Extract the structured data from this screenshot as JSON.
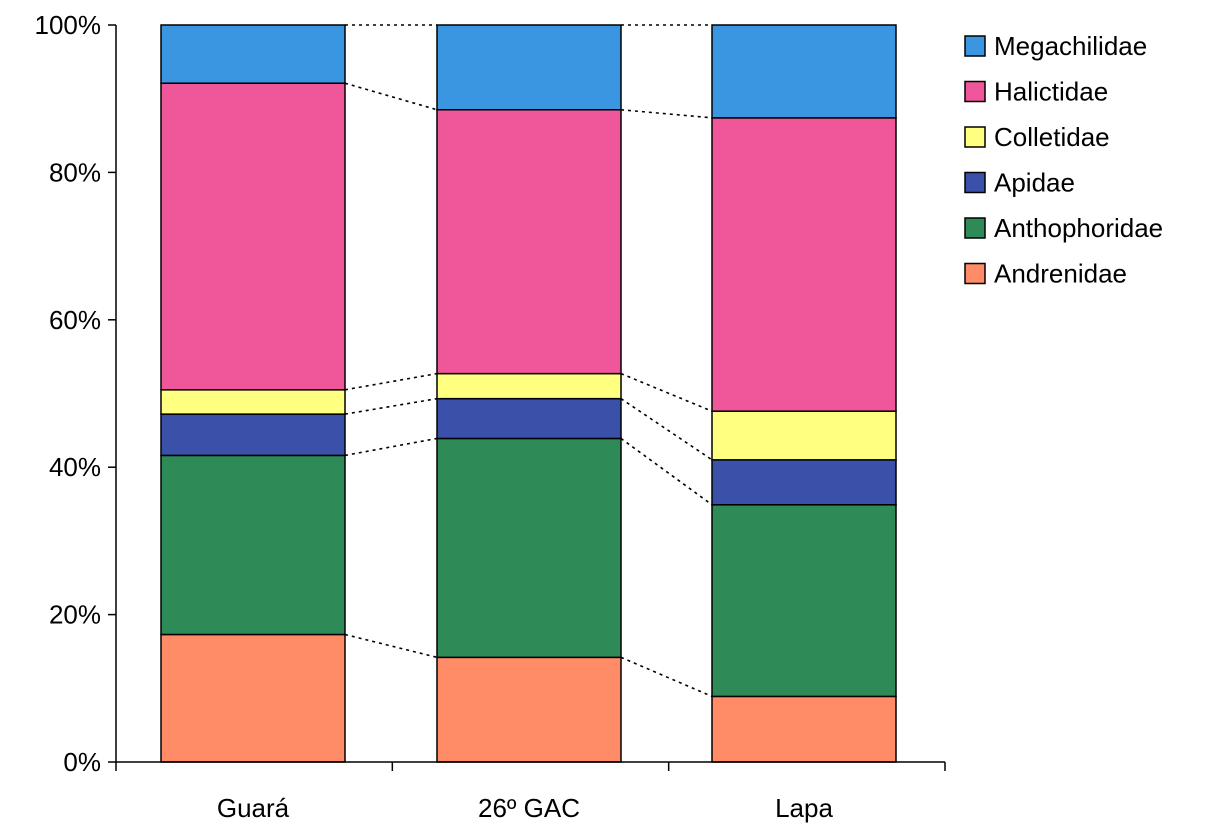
{
  "chart_data": {
    "type": "bar",
    "stacked": "percent",
    "categories": [
      "Guará",
      "26º GAC",
      "Lapa"
    ],
    "series": [
      {
        "name": "Andrenidae",
        "values": [
          17.3,
          14.2,
          8.9
        ],
        "color": "#ff8c66"
      },
      {
        "name": "Anthophoridae",
        "values": [
          24.3,
          29.7,
          26.0
        ],
        "color": "#2e8b57"
      },
      {
        "name": "Apidae",
        "values": [
          5.6,
          5.4,
          6.1
        ],
        "color": "#3b50a8"
      },
      {
        "name": "Colletidae",
        "values": [
          3.3,
          3.4,
          6.6
        ],
        "color": "#ffff80"
      },
      {
        "name": "Halictidae",
        "values": [
          41.6,
          35.8,
          39.8
        ],
        "color": "#f0569a"
      },
      {
        "name": "Megachilidae",
        "values": [
          7.9,
          11.5,
          12.6
        ],
        "color": "#3a96e0"
      }
    ],
    "legend_order": [
      "Megachilidae",
      "Halictidae",
      "Colletidae",
      "Apidae",
      "Anthophoridae",
      "Andrenidae"
    ],
    "yticks": [
      "0%",
      "20%",
      "40%",
      "60%",
      "80%",
      "100%"
    ],
    "ylim": [
      0,
      100
    ],
    "series_lines": "dotted",
    "legend": "top-right",
    "grid": false,
    "title": "",
    "xlabel": "",
    "ylabel": ""
  }
}
